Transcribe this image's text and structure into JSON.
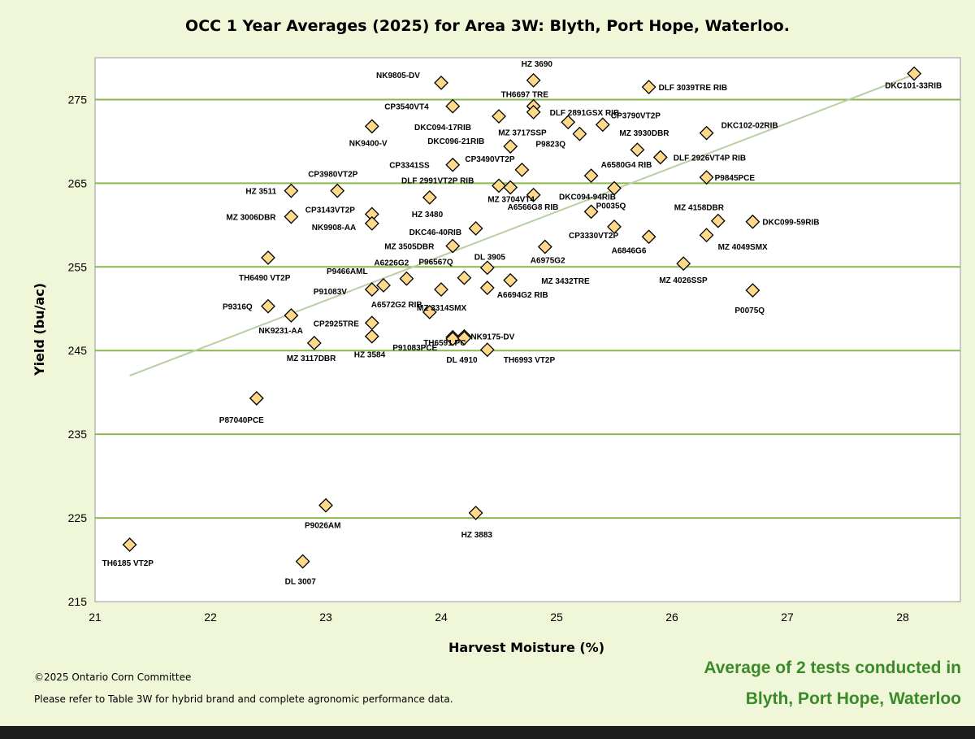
{
  "chart_data": {
    "type": "scatter",
    "title": "OCC 1 Year Averages (2025) for Area 3W: Blyth, Port Hope, Waterloo.",
    "xlabel": "Harvest Moisture (%)",
    "ylabel": "Yield (bu/ac)",
    "xlim": [
      21,
      28.5
    ],
    "ylim": [
      215,
      280
    ],
    "xticks": [
      21,
      22,
      23,
      24,
      25,
      26,
      27,
      28
    ],
    "yticks": [
      215,
      225,
      235,
      245,
      255,
      265,
      275
    ],
    "grid": "horizontal",
    "marker_color": "#ffd98a",
    "gridline_color": "#8ab84a",
    "trendline": {
      "x": [
        21.3,
        28.1
      ],
      "y": [
        242,
        278
      ],
      "color": "#b9cfa2"
    },
    "points": [
      {
        "label": "DKC101-33RIB",
        "x": 28.1,
        "y": 278.1
      },
      {
        "label": "HZ 3690",
        "x": 24.8,
        "y": 277.3
      },
      {
        "label": "NK9805-DV",
        "x": 24.0,
        "y": 277.0
      },
      {
        "label": "DLF 3039TRE RIB",
        "x": 25.8,
        "y": 276.5
      },
      {
        "label": "TH6697 TRE",
        "x": 24.8,
        "y": 274.2
      },
      {
        "label": "CP3540VT4",
        "x": 24.1,
        "y": 274.2
      },
      {
        "label": "DLF 2891GSX RIB",
        "x": 24.8,
        "y": 273.5
      },
      {
        "label": "DKC094-17RIB",
        "x": 24.5,
        "y": 273.0
      },
      {
        "label": "CP3790VT2P",
        "x": 25.4,
        "y": 272.0
      },
      {
        "label": "MZ 3717SSP",
        "x": 25.1,
        "y": 272.3
      },
      {
        "label": "NK9400-V",
        "x": 23.4,
        "y": 271.8
      },
      {
        "label": "DKC102-02RIB",
        "x": 26.3,
        "y": 271.0
      },
      {
        "label": "P9823Q",
        "x": 25.2,
        "y": 270.9
      },
      {
        "label": "DKC096-21RIB",
        "x": 24.6,
        "y": 269.4
      },
      {
        "label": "MZ 3930DBR",
        "x": 25.7,
        "y": 269.0
      },
      {
        "label": "DLF 2926VT4P RIB",
        "x": 25.9,
        "y": 268.1
      },
      {
        "label": "CP3341SS",
        "x": 24.1,
        "y": 267.2
      },
      {
        "label": "CP3490VT2P",
        "x": 24.7,
        "y": 266.6
      },
      {
        "label": "A6580G4 RIB",
        "x": 25.3,
        "y": 265.9
      },
      {
        "label": "P9845PCE",
        "x": 26.3,
        "y": 265.7
      },
      {
        "label": "DLF 2991VT2P RIB",
        "x": 24.5,
        "y": 264.7
      },
      {
        "label": "CP3980VT2P",
        "x": 23.1,
        "y": 264.1
      },
      {
        "label": "HZ 3511",
        "x": 22.7,
        "y": 264.1
      },
      {
        "label": "MZ 3704VT4",
        "x": 24.6,
        "y": 264.5
      },
      {
        "label": "DKC094-94RIB",
        "x": 25.5,
        "y": 264.4
      },
      {
        "label": "HZ 3480",
        "x": 23.9,
        "y": 263.3
      },
      {
        "label": "A6566G8 RIB",
        "x": 24.8,
        "y": 263.6
      },
      {
        "label": "CP3143VT2P",
        "x": 23.4,
        "y": 261.3
      },
      {
        "label": "P0035Q",
        "x": 25.3,
        "y": 261.6
      },
      {
        "label": "MZ 3006DBR",
        "x": 22.7,
        "y": 261.0
      },
      {
        "label": "NK9908-AA",
        "x": 23.4,
        "y": 260.2
      },
      {
        "label": "MZ 4158DBR",
        "x": 26.4,
        "y": 260.5
      },
      {
        "label": "DKC099-59RIB",
        "x": 26.7,
        "y": 260.4
      },
      {
        "label": "CP3330VT2P",
        "x": 25.5,
        "y": 259.8
      },
      {
        "label": "DKC46-40RIB",
        "x": 24.3,
        "y": 259.6
      },
      {
        "label": "A6846G6",
        "x": 25.8,
        "y": 258.6
      },
      {
        "label": "MZ 4049SMX",
        "x": 26.3,
        "y": 258.8
      },
      {
        "label": "MZ 3505DBR",
        "x": 24.1,
        "y": 257.5
      },
      {
        "label": "A6975G2",
        "x": 24.9,
        "y": 257.4
      },
      {
        "label": "TH6490 VT2P",
        "x": 22.5,
        "y": 256.1
      },
      {
        "label": "MZ 4026SSP",
        "x": 26.1,
        "y": 255.4
      },
      {
        "label": "DL 3905",
        "x": 24.4,
        "y": 254.9
      },
      {
        "label": "A6226G2",
        "x": 23.7,
        "y": 253.6
      },
      {
        "label": "P96567Q",
        "x": 24.2,
        "y": 253.7
      },
      {
        "label": "MZ 3432TRE",
        "x": 24.6,
        "y": 253.4
      },
      {
        "label": "P9466AML",
        "x": 23.5,
        "y": 252.8
      },
      {
        "label": "A6694G2 RIB",
        "x": 24.4,
        "y": 252.5
      },
      {
        "label": "P91083V",
        "x": 23.4,
        "y": 252.3
      },
      {
        "label": "MZ 3314SMX",
        "x": 24.0,
        "y": 252.3
      },
      {
        "label": "P0075Q",
        "x": 26.7,
        "y": 252.2
      },
      {
        "label": "A6572G2 RIB",
        "x": 23.9,
        "y": 249.6
      },
      {
        "label": "P9316Q",
        "x": 22.5,
        "y": 250.3
      },
      {
        "label": "NK9231-AA",
        "x": 22.7,
        "y": 249.2
      },
      {
        "label": "CP2925TRE",
        "x": 23.4,
        "y": 248.3
      },
      {
        "label": "TH6591 PC",
        "x": 24.1,
        "y": 246.6
      },
      {
        "label": "HZ 3584",
        "x": 23.4,
        "y": 246.7
      },
      {
        "label": "NK9175-DV",
        "x": 24.2,
        "y": 246.7
      },
      {
        "label": "MZ 3117DBR",
        "x": 22.9,
        "y": 245.9
      },
      {
        "label": "P91083PCE",
        "x": 24.1,
        "y": 246.4
      },
      {
        "label": "DL 4910",
        "x": 24.2,
        "y": 246.5
      },
      {
        "label": "TH6993 VT2P",
        "x": 24.4,
        "y": 245.1
      },
      {
        "label": "P87040PCE",
        "x": 22.4,
        "y": 239.3
      },
      {
        "label": "P9026AM",
        "x": 23.0,
        "y": 226.5
      },
      {
        "label": "HZ 3883",
        "x": 24.3,
        "y": 225.6
      },
      {
        "label": "TH6185 VT2P",
        "x": 21.3,
        "y": 221.8
      },
      {
        "label": "DL 3007",
        "x": 22.8,
        "y": 219.8
      }
    ]
  },
  "footer": {
    "copyright": "©2025 Ontario Corn Committee",
    "refer": "Please refer to Table 3W for hybrid brand and complete agronomic performance data.",
    "note_line1": "Average of 2 tests conducted in",
    "note_line2": "Blyth, Port Hope, Waterloo"
  }
}
